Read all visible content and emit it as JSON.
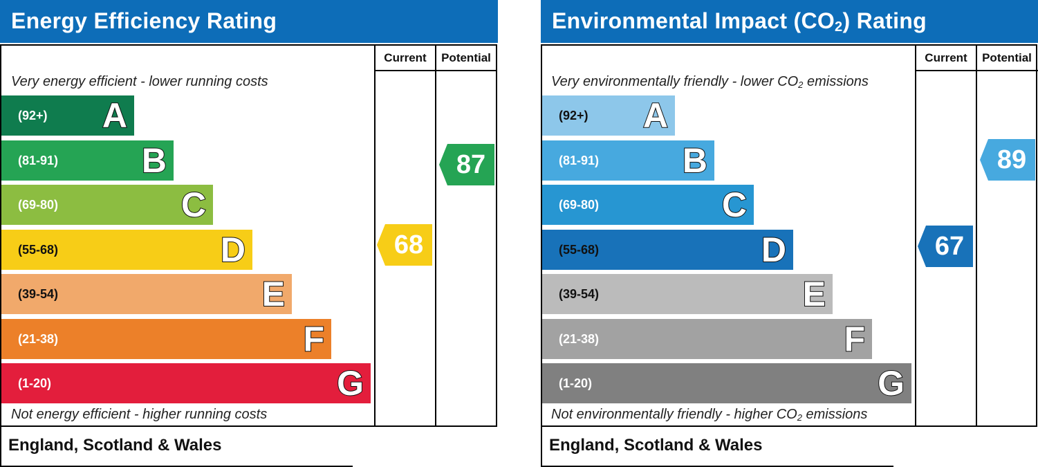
{
  "chart_data": [
    {
      "type": "table",
      "title": "Energy Efficiency Rating",
      "columns": [
        "Current",
        "Potential"
      ],
      "top_note": "Very energy efficient - lower running costs",
      "bottom_note": "Not energy efficient - higher running costs",
      "footer": "England, Scotland & Wales",
      "bands": [
        {
          "range": "(92+)",
          "letter": "A",
          "color": "#0f7c4e"
        },
        {
          "range": "(81-91)",
          "letter": "B",
          "color": "#25a454"
        },
        {
          "range": "(69-80)",
          "letter": "C",
          "color": "#8cbd41"
        },
        {
          "range": "(55-68)",
          "letter": "D",
          "color": "#f7cd17"
        },
        {
          "range": "(39-54)",
          "letter": "E",
          "color": "#f1a96b"
        },
        {
          "range": "(21-38)",
          "letter": "F",
          "color": "#ec8029"
        },
        {
          "range": "(1-20)",
          "letter": "G",
          "color": "#e31e3c"
        }
      ],
      "current": {
        "value": 68,
        "band": "D",
        "color": "#f7cd17"
      },
      "potential": {
        "value": 87,
        "band": "B",
        "color": "#25a454"
      }
    },
    {
      "type": "table",
      "title": "Environmental Impact (CO",
      "title_sub": "2",
      "title_end": ") Rating",
      "columns": [
        "Current",
        "Potential"
      ],
      "top_note": "Very environmentally friendly - lower CO",
      "top_note_sub": "2",
      "top_note_end": " emissions",
      "bottom_note": "Not environmentally friendly - higher CO",
      "bottom_note_sub": "2",
      "bottom_note_end": " emissions",
      "footer": "England, Scotland & Wales",
      "bands": [
        {
          "range": "(92+)",
          "letter": "A",
          "color": "#8dc7ea"
        },
        {
          "range": "(81-91)",
          "letter": "B",
          "color": "#47a9df"
        },
        {
          "range": "(69-80)",
          "letter": "C",
          "color": "#2796d2"
        },
        {
          "range": "(55-68)",
          "letter": "D",
          "color": "#1872b9"
        },
        {
          "range": "(39-54)",
          "letter": "E",
          "color": "#bbbbbb"
        },
        {
          "range": "(21-38)",
          "letter": "F",
          "color": "#a2a2a2"
        },
        {
          "range": "(1-20)",
          "letter": "G",
          "color": "#808080"
        }
      ],
      "current": {
        "value": 67,
        "band": "D",
        "color": "#1872b9"
      },
      "potential": {
        "value": 89,
        "band": "B",
        "color": "#47a9df"
      }
    }
  ]
}
